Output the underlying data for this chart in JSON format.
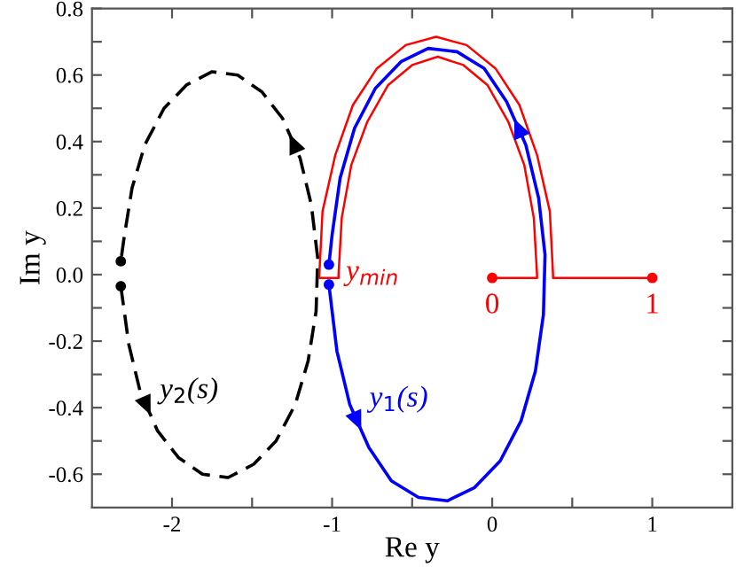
{
  "chart_data": {
    "type": "line",
    "xlabel": "Re y",
    "ylabel": "Im y",
    "xlim": [
      -2.5,
      1.5
    ],
    "ylim": [
      -0.7,
      0.8
    ],
    "xticks": [
      -2,
      {
        "value": -1.5,
        "label": null
      },
      -1,
      {
        "value": -0.5,
        "label": null
      },
      0,
      {
        "value": 0.5,
        "label": null
      },
      1
    ],
    "yticks": [
      {
        "value": -0.6,
        "label": "-0.6"
      },
      {
        "value": -0.5,
        "label": null
      },
      {
        "value": -0.4,
        "label": "-0.4"
      },
      {
        "value": -0.3,
        "label": null
      },
      {
        "value": -0.2,
        "label": "-0.2"
      },
      {
        "value": -0.1,
        "label": null
      },
      {
        "value": 0,
        "label": "0.0"
      },
      {
        "value": 0.1,
        "label": null
      },
      {
        "value": 0.2,
        "label": "0.2"
      },
      {
        "value": 0.3,
        "label": null
      },
      {
        "value": 0.4,
        "label": "0.4"
      },
      {
        "value": 0.5,
        "label": null
      },
      {
        "value": 0.6,
        "label": "0.6"
      },
      {
        "value": 0.7,
        "label": null
      },
      {
        "value": 0.8,
        "label": "0.8"
      }
    ],
    "grid": false,
    "series": [
      {
        "type": "line",
        "color": "#000000",
        "line_style": "dashed",
        "x": [
          -2.32,
          -2.27,
          -2.2,
          -2.09,
          -1.96,
          -1.81,
          -1.65,
          -1.49,
          -1.35,
          -1.23,
          -1.15,
          -1.1,
          -1.09,
          -1.13,
          -1.2,
          -1.31,
          -1.44,
          -1.59,
          -1.75,
          -1.91,
          -2.05,
          -2.17,
          -2.25,
          -2.3,
          -2.32
        ],
        "values": [
          -0.035,
          -0.21,
          -0.35,
          -0.47,
          -0.55,
          -0.6,
          -0.61,
          -0.57,
          -0.5,
          -0.39,
          -0.26,
          -0.11,
          0.05,
          0.21,
          0.35,
          0.47,
          0.55,
          0.6,
          0.61,
          0.57,
          0.5,
          0.39,
          0.26,
          0.11,
          0.04
        ]
      },
      {
        "type": "line",
        "color": "#0000ff",
        "line_style": "solid",
        "x": [
          -1.02,
          -0.97,
          -0.89,
          -0.77,
          -0.63,
          -0.46,
          -0.28,
          -0.11,
          0.05,
          0.18,
          0.27,
          0.32,
          0.33,
          0.29,
          0.21,
          0.09,
          -0.05,
          -0.22,
          -0.4,
          -0.57,
          -0.73,
          -0.86,
          -0.95,
          -1.0,
          -1.02
        ],
        "values": [
          -0.03,
          -0.23,
          -0.39,
          -0.52,
          -0.62,
          -0.67,
          -0.68,
          -0.64,
          -0.56,
          -0.44,
          -0.29,
          -0.12,
          0.06,
          0.23,
          0.39,
          0.52,
          0.62,
          0.67,
          0.68,
          0.64,
          0.56,
          0.44,
          0.29,
          0.12,
          0.03
        ]
      },
      {
        "type": "line",
        "color": "#ff0000",
        "line_style": "solid",
        "x": [
          0,
          0.28,
          0.28,
          0.26,
          0.2,
          0.1,
          -0.03,
          -0.18,
          -0.34,
          -0.5,
          -0.65,
          -0.78,
          -0.88,
          -0.94,
          -0.96,
          -0.96,
          -1.08,
          -1.08,
          -1.06,
          -0.98,
          -0.87,
          -0.72,
          -0.54,
          -0.35,
          -0.16,
          0.02,
          0.17,
          0.28,
          0.36,
          0.38,
          0.38,
          1
        ],
        "values": [
          -0.01,
          -0.01,
          0,
          0.17,
          0.33,
          0.46,
          0.57,
          0.63,
          0.655,
          0.63,
          0.57,
          0.46,
          0.33,
          0.17,
          0,
          -0.01,
          -0.01,
          0,
          0.19,
          0.36,
          0.51,
          0.62,
          0.69,
          0.715,
          0.69,
          0.62,
          0.51,
          0.36,
          0.19,
          0,
          -0.01,
          -0.01
        ]
      },
      {
        "type": "scatter",
        "marker": "circle",
        "color": "#000000",
        "x": [
          -2.32,
          -2.32
        ],
        "values": [
          0.04,
          -0.035
        ]
      },
      {
        "type": "scatter",
        "marker": "circle",
        "color": "#0000ff",
        "x": [
          -1.02,
          -1.02
        ],
        "values": [
          0.03,
          -0.03
        ]
      },
      {
        "type": "scatter",
        "marker": "circle",
        "color": "#ff0000",
        "x": [
          0,
          1
        ],
        "values": [
          -0.01,
          -0.01
        ]
      }
    ],
    "annotations": [
      {
        "text": "y$_{min}$",
        "x": -0.96,
        "y": -0.01
      },
      {
        "text": "0",
        "x": 0,
        "y": -0.01
      },
      {
        "text": "1",
        "x": 1,
        "y": -0.01
      },
      {
        "text": "y$_{1}$(s)",
        "x": -0.89,
        "y": -0.39
      },
      {
        "text": "y$_{2}$(s)",
        "x": -2.2,
        "y": -0.35
      }
    ]
  }
}
